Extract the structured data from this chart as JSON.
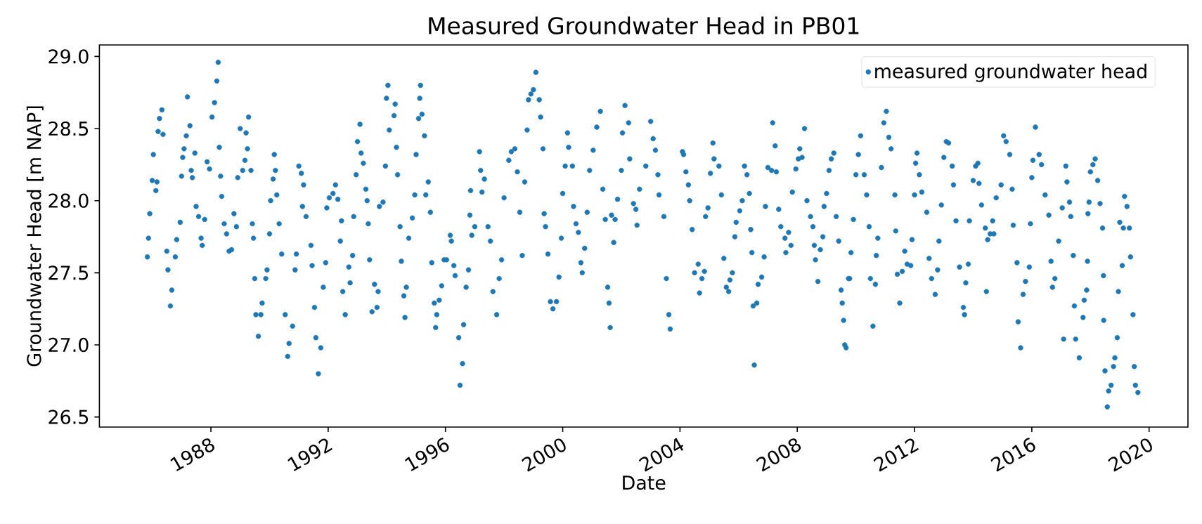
{
  "chart_data": {
    "type": "scatter",
    "title": "Measured Groundwater Head in PB01",
    "xlabel": "Date",
    "ylabel": "Groundwater Head [m NAP]",
    "legend": "top right",
    "marker": "circle",
    "xlim": [
      "1984-03-13",
      "2021-04-30"
    ],
    "xticks": [
      "1988",
      "1992",
      "1996",
      "2000",
      "2004",
      "2008",
      "2012",
      "2016",
      "2020"
    ],
    "ylim": [
      26.43,
      29.08
    ],
    "yticks": [
      26.5,
      {
        "value": 27,
        "label": "27.0"
      },
      27.5,
      {
        "value": 28,
        "label": "28.0"
      },
      28.5,
      {
        "value": 29,
        "label": "29.0"
      }
    ],
    "series": [
      {
        "name": "measured groundwater head",
        "color": "#1f77b4",
        "x": [
          "1985-11-01",
          "1985-11-15",
          "1985-12-01",
          "1986-01-01",
          "1986-01-15",
          "1986-02-15",
          "1986-03-01",
          "1986-03-15",
          "1986-04-01",
          "1986-05-01",
          "1986-05-15",
          "1986-07-01",
          "1986-07-15",
          "1986-08-15",
          "1986-09-01",
          "1986-10-15",
          "1986-11-01",
          "1986-12-15",
          "1987-01-01",
          "1987-01-15",
          "1987-02-01",
          "1987-03-01",
          "1987-03-15",
          "1987-04-15",
          "1987-05-01",
          "1987-05-15",
          "1987-06-15",
          "1987-07-01",
          "1987-08-01",
          "1987-09-01",
          "1987-09-15",
          "1987-10-15",
          "1987-11-15",
          "1987-12-15",
          "1988-01-15",
          "1988-02-15",
          "1988-03-15",
          "1988-04-01",
          "1988-04-15",
          "1988-05-01",
          "1988-05-15",
          "1988-06-15",
          "1988-07-15",
          "1988-08-15",
          "1988-09-15",
          "1988-10-15",
          "1988-11-15",
          "1988-12-01",
          "1989-01-01",
          "1989-02-01",
          "1989-03-01",
          "1989-03-15",
          "1989-04-01",
          "1989-04-15",
          "1989-05-15",
          "1989-06-01",
          "1989-06-15",
          "1989-07-01",
          "1989-07-15",
          "1989-08-15",
          "1989-09-15",
          "1989-10-01",
          "1989-11-15",
          "1989-12-01",
          "1990-01-01",
          "1990-01-15",
          "1990-02-15",
          "1990-03-01",
          "1990-03-15",
          "1990-04-01",
          "1990-05-01",
          "1990-06-01",
          "1990-07-15",
          "1990-08-15",
          "1990-09-01",
          "1990-10-15",
          "1990-11-15",
          "1990-12-01",
          "1991-01-01",
          "1991-02-01",
          "1991-02-15",
          "1991-03-01",
          "1991-04-01",
          "1991-06-01",
          "1991-06-15",
          "1991-07-15",
          "1991-08-01",
          "1991-09-01",
          "1991-10-01",
          "1991-11-01",
          "1991-12-01",
          "1991-12-15",
          "1992-01-15",
          "1992-03-01",
          "1992-04-01",
          "1992-05-01",
          "1992-06-01",
          "1992-06-15",
          "1992-07-01",
          "1992-08-01",
          "1992-09-15",
          "1992-10-01",
          "1992-11-01",
          "1992-11-15",
          "1992-12-15",
          "1993-01-01",
          "1993-02-01",
          "1993-02-15",
          "1993-03-15",
          "1993-04-15",
          "1993-05-01",
          "1993-05-15",
          "1993-06-01",
          "1993-07-01",
          "1993-08-01",
          "1993-09-01",
          "1993-09-15",
          "1993-10-01",
          "1993-11-15",
          "1993-12-15",
          "1993-12-28",
          "1994-01-15",
          "1994-02-01",
          "1994-04-01",
          "1994-04-15",
          "1994-05-01",
          "1994-05-15",
          "1994-06-15",
          "1994-07-01",
          "1994-08-01",
          "1994-08-15",
          "1994-09-01",
          "1994-10-01",
          "1994-11-15",
          "1994-12-15",
          "1995-01-01",
          "1995-02-01",
          "1995-02-15",
          "1995-02-25",
          "1995-03-15",
          "1995-04-15",
          "1995-05-01",
          "1995-06-01",
          "1995-06-28",
          "1995-07-15",
          "1995-08-15",
          "1995-09-01",
          "1995-09-15",
          "1995-10-15",
          "1995-11-15",
          "1995-12-15",
          "1996-01-15",
          "1996-03-01",
          "1996-03-15",
          "1996-04-15",
          "1996-05-01",
          "1996-06-15",
          "1996-07-01",
          "1996-08-01",
          "1996-08-15",
          "1996-09-15",
          "1996-10-15",
          "1996-11-01",
          "1996-11-10",
          "1996-11-25",
          "1997-01-01",
          "1997-03-01",
          "1997-03-15",
          "1997-04-01",
          "1997-05-01",
          "1997-06-15",
          "1997-07-15",
          "1997-08-15",
          "1997-10-01",
          "1997-11-01",
          "1997-12-01",
          "1998-01-01",
          "1998-03-01",
          "1998-04-01",
          "1998-05-15",
          "1998-06-15",
          "1998-07-15",
          "1998-08-15",
          "1998-09-15",
          "1998-10-15",
          "1998-11-01",
          "1998-12-01",
          "1999-01-01",
          "1999-02-01",
          "1999-03-15",
          "1999-04-01",
          "1999-05-01",
          "1999-05-15",
          "1999-06-01",
          "1999-07-01",
          "1999-08-01",
          "1999-09-01",
          "1999-10-15",
          "1999-11-15",
          "1999-12-15",
          "2000-01-01",
          "2000-02-01",
          "2000-03-01",
          "2000-03-15",
          "2000-05-01",
          "2000-05-15",
          "2000-06-15",
          "2000-07-15",
          "2000-08-15",
          "2000-09-01",
          "2000-10-01",
          "2000-11-01",
          "2000-12-01",
          "2001-01-15",
          "2001-03-01",
          "2001-04-15",
          "2001-05-15",
          "2001-06-15",
          "2001-07-15",
          "2001-08-01",
          "2001-08-15",
          "2001-09-01",
          "2001-09-28",
          "2001-10-15",
          "2001-11-15",
          "2002-01-01",
          "2002-01-15",
          "2002-02-15",
          "2002-04-01",
          "2002-04-15",
          "2002-06-01",
          "2002-07-01",
          "2002-07-15",
          "2002-08-15",
          "2002-11-01",
          "2003-01-01",
          "2003-02-01",
          "2003-03-01",
          "2003-04-01",
          "2003-04-15",
          "2003-06-15",
          "2003-07-15",
          "2003-08-15",
          "2003-09-01",
          "2004-02-01",
          "2004-02-15",
          "2004-03-15",
          "2004-04-15",
          "2004-05-01",
          "2004-06-01",
          "2004-07-01",
          "2004-08-15",
          "2004-09-01",
          "2004-10-01",
          "2004-11-01",
          "2004-11-15",
          "2004-12-15",
          "2005-01-15",
          "2005-02-15",
          "2005-03-01",
          "2005-05-01",
          "2005-06-01",
          "2005-07-01",
          "2005-08-01",
          "2005-08-30",
          "2005-09-15",
          "2005-10-15",
          "2005-11-15",
          "2005-12-01",
          "2006-01-15",
          "2006-02-15",
          "2006-03-15",
          "2006-04-15",
          "2006-05-15",
          "2006-06-01",
          "2006-06-15",
          "2006-07-01",
          "2006-07-15",
          "2006-08-15",
          "2006-09-01",
          "2006-10-15",
          "2006-11-15",
          "2006-12-01",
          "2007-01-01",
          "2007-02-15",
          "2007-03-01",
          "2007-04-01",
          "2007-04-15",
          "2007-05-15",
          "2007-06-10",
          "2007-08-01",
          "2007-08-12",
          "2007-09-15",
          "2007-10-15",
          "2007-11-01",
          "2007-12-15",
          "2008-01-15",
          "2008-02-01",
          "2008-03-01",
          "2008-04-01",
          "2008-05-01",
          "2008-06-15",
          "2008-07-15",
          "2008-08-01",
          "2008-08-15",
          "2008-09-15",
          "2008-10-15",
          "2008-11-15",
          "2008-12-01",
          "2009-01-01",
          "2009-02-01",
          "2009-03-01",
          "2009-04-01",
          "2009-05-01",
          "2009-06-01",
          "2009-07-01",
          "2009-07-15",
          "2009-08-01",
          "2009-08-15",
          "2009-09-01",
          "2009-10-01",
          "2009-10-15",
          "2009-11-01",
          "2009-12-01",
          "2010-01-01",
          "2010-02-01",
          "2010-03-01",
          "2010-04-15",
          "2010-05-15",
          "2010-06-15",
          "2010-07-01",
          "2010-08-01",
          "2010-09-01",
          "2010-09-12",
          "2010-10-01",
          "2010-11-15",
          "2010-12-15",
          "2011-01-15",
          "2011-02-15",
          "2011-03-15",
          "2011-05-01",
          "2011-05-12",
          "2011-06-01",
          "2011-07-01",
          "2011-08-01",
          "2011-09-01",
          "2011-10-01",
          "2011-11-15",
          "2011-12-01",
          "2012-01-01",
          "2012-01-15",
          "2012-02-01",
          "2012-03-01",
          "2012-04-01",
          "2012-06-01",
          "2012-07-01",
          "2012-08-01",
          "2012-09-15",
          "2012-10-15",
          "2012-11-01",
          "2012-12-01",
          "2013-01-01",
          "2013-02-01",
          "2013-03-01",
          "2013-04-15",
          "2013-05-01",
          "2013-06-01",
          "2013-07-15",
          "2013-09-01",
          "2013-09-15",
          "2013-10-01",
          "2013-11-01",
          "2013-11-15",
          "2014-01-01",
          "2014-02-01",
          "2014-03-01",
          "2014-03-15",
          "2014-04-15",
          "2014-06-01",
          "2014-06-15",
          "2014-07-01",
          "2014-08-01",
          "2014-09-01",
          "2014-09-15",
          "2014-10-15",
          "2014-12-15",
          "2015-01-15",
          "2015-02-15",
          "2015-04-01",
          "2015-05-01",
          "2015-05-15",
          "2015-07-01",
          "2015-07-15",
          "2015-08-15",
          "2015-09-15",
          "2015-10-15",
          "2015-12-01",
          "2015-12-15",
          "2016-01-01",
          "2016-01-15",
          "2016-02-15",
          "2016-04-01",
          "2016-05-01",
          "2016-06-15",
          "2016-08-01",
          "2016-08-28",
          "2016-09-15",
          "2016-10-15",
          "2016-12-01",
          "2017-01-15",
          "2017-02-01",
          "2017-03-01",
          "2017-03-15",
          "2017-04-15",
          "2017-05-01",
          "2017-06-01",
          "2017-06-15",
          "2017-07-01",
          "2017-08-15",
          "2017-10-01",
          "2017-10-15",
          "2017-11-15",
          "2017-11-25",
          "2017-12-01",
          "2017-12-15",
          "2018-01-01",
          "2018-02-01",
          "2018-03-01",
          "2018-04-01",
          "2018-05-01",
          "2018-06-01",
          "2018-06-12",
          "2018-06-15",
          "2018-07-01",
          "2018-07-30",
          "2018-08-15",
          "2018-09-15",
          "2018-10-15",
          "2018-11-01",
          "2018-12-01",
          "2018-12-15",
          "2019-01-01",
          "2019-02-01",
          "2019-02-15",
          "2019-03-01",
          "2019-04-01",
          "2019-05-01",
          "2019-05-15",
          "2019-06-15",
          "2019-07-01",
          "2019-07-15",
          "2019-08-15"
        ],
        "values": [
          27.61,
          27.74,
          27.91,
          28.14,
          28.32,
          28.07,
          28.13,
          28.48,
          28.57,
          28.63,
          28.46,
          27.65,
          27.52,
          27.27,
          27.38,
          27.61,
          27.73,
          27.85,
          28.17,
          28.3,
          28.36,
          28.45,
          28.72,
          28.52,
          28.21,
          28.16,
          28.33,
          27.96,
          27.89,
          27.74,
          27.69,
          27.87,
          28.27,
          28.22,
          28.58,
          28.68,
          28.83,
          28.96,
          28.37,
          28.17,
          28.03,
          27.84,
          27.77,
          27.65,
          27.66,
          27.91,
          27.82,
          28.16,
          28.5,
          28.21,
          28.28,
          28.47,
          28.36,
          28.58,
          28.21,
          27.84,
          27.74,
          27.46,
          27.21,
          27.06,
          27.21,
          27.29,
          27.46,
          27.52,
          27.77,
          28.0,
          28.15,
          28.32,
          28.21,
          28.04,
          27.84,
          27.63,
          27.21,
          26.92,
          27.01,
          27.13,
          27.52,
          27.63,
          28.24,
          28.19,
          27.96,
          28.11,
          27.89,
          27.69,
          27.55,
          27.26,
          27.05,
          26.8,
          26.98,
          27.4,
          27.57,
          27.95,
          28.02,
          28.05,
          28.11,
          28.01,
          27.72,
          27.86,
          27.37,
          27.21,
          27.54,
          27.43,
          27.62,
          27.89,
          28.18,
          28.41,
          28.53,
          28.33,
          28.26,
          28.08,
          28.0,
          27.84,
          27.59,
          27.23,
          27.42,
          27.26,
          27.37,
          27.96,
          27.99,
          28.24,
          28.71,
          28.8,
          28.49,
          28.59,
          28.67,
          28.37,
          28.18,
          27.82,
          27.58,
          27.34,
          27.19,
          27.4,
          27.74,
          27.88,
          28.04,
          28.32,
          28.57,
          28.71,
          28.8,
          28.6,
          28.45,
          28.04,
          28.13,
          27.92,
          27.57,
          27.29,
          27.12,
          27.21,
          27.31,
          27.41,
          27.59,
          27.59,
          27.76,
          27.72,
          27.55,
          27.48,
          27.05,
          26.72,
          26.87,
          27.14,
          27.4,
          27.52,
          27.9,
          28.07,
          27.76,
          27.82,
          28.34,
          28.21,
          28.06,
          28.15,
          27.82,
          27.72,
          27.37,
          27.21,
          27.46,
          27.59,
          28.02,
          28.28,
          28.34,
          28.36,
          28.2,
          27.92,
          27.62,
          28.13,
          28.49,
          28.7,
          28.74,
          28.77,
          28.89,
          28.7,
          28.58,
          28.36,
          27.91,
          27.82,
          27.63,
          27.3,
          27.25,
          27.3,
          27.47,
          27.74,
          28.05,
          28.24,
          28.47,
          28.37,
          28.24,
          27.96,
          27.84,
          27.78,
          27.57,
          27.5,
          27.67,
          27.92,
          28.21,
          28.35,
          28.51,
          28.62,
          28.08,
          27.87,
          27.4,
          27.29,
          27.12,
          27.9,
          27.71,
          27.87,
          28.01,
          28.21,
          28.47,
          28.66,
          28.54,
          28.29,
          27.98,
          27.94,
          27.83,
          28.08,
          28.24,
          28.55,
          28.43,
          28.35,
          28.18,
          28.04,
          27.89,
          27.46,
          27.21,
          27.11,
          28.34,
          28.32,
          28.2,
          28.11,
          28.0,
          27.8,
          27.5,
          27.56,
          27.36,
          27.46,
          27.51,
          27.89,
          27.95,
          28.19,
          28.4,
          28.29,
          28.24,
          28.04,
          27.6,
          27.4,
          27.37,
          27.45,
          27.5,
          27.75,
          27.85,
          27.93,
          28.0,
          28.24,
          28.18,
          28.05,
          27.8,
          27.64,
          27.27,
          26.86,
          27.29,
          27.42,
          27.47,
          27.61,
          27.96,
          28.23,
          28.21,
          28.54,
          28.38,
          28.2,
          27.94,
          27.82,
          27.74,
          27.64,
          27.78,
          27.69,
          28.06,
          28.22,
          28.29,
          28.36,
          28.3,
          28.5,
          28.0,
          27.89,
          27.82,
          27.69,
          27.59,
          27.44,
          27.66,
          27.75,
          27.96,
          28.05,
          28.21,
          28.29,
          28.33,
          27.89,
          27.72,
          27.38,
          27.29,
          27.17,
          27.0,
          26.98,
          27.46,
          27.46,
          27.64,
          27.87,
          28.18,
          28.32,
          28.45,
          28.18,
          28.04,
          27.82,
          27.46,
          27.13,
          27.42,
          27.62,
          27.74,
          28.23,
          28.54,
          28.62,
          28.44,
          28.36,
          28.04,
          27.79,
          27.49,
          27.29,
          27.51,
          27.65,
          27.56,
          27.55,
          27.73,
          28.04,
          28.26,
          28.33,
          28.18,
          28.06,
          27.92,
          27.6,
          27.46,
          27.35,
          27.52,
          27.72,
          27.97,
          28.3,
          28.41,
          28.4,
          28.24,
          28.11,
          27.86,
          27.54,
          27.26,
          27.21,
          27.43,
          27.56,
          27.86,
          28.14,
          28.24,
          28.26,
          28.12,
          27.97,
          27.81,
          27.37,
          27.73,
          27.77,
          27.86,
          27.77,
          28.02,
          28.11,
          28.45,
          28.41,
          28.32,
          28.08,
          27.83,
          27.57,
          27.16,
          26.98,
          27.35,
          27.44,
          27.54,
          27.84,
          28.16,
          28.28,
          28.51,
          28.32,
          28.25,
          28.04,
          27.9,
          27.58,
          27.4,
          27.46,
          27.72,
          27.95,
          27.04,
          28.24,
          28.13,
          27.99,
          27.89,
          27.62,
          27.27,
          27.04,
          26.91,
          27.19,
          27.31,
          27.38,
          27.58,
          27.91,
          27.99,
          28.2,
          28.25,
          28.29,
          28.14,
          27.98,
          27.81,
          27.48,
          27.17,
          26.82,
          26.57,
          26.68,
          26.72,
          26.85,
          26.91,
          27.05,
          27.37,
          27.85,
          27.55,
          27.81,
          28.03,
          27.96,
          27.81,
          27.61,
          27.21,
          26.85,
          26.72,
          26.67
        ]
      }
    ]
  }
}
